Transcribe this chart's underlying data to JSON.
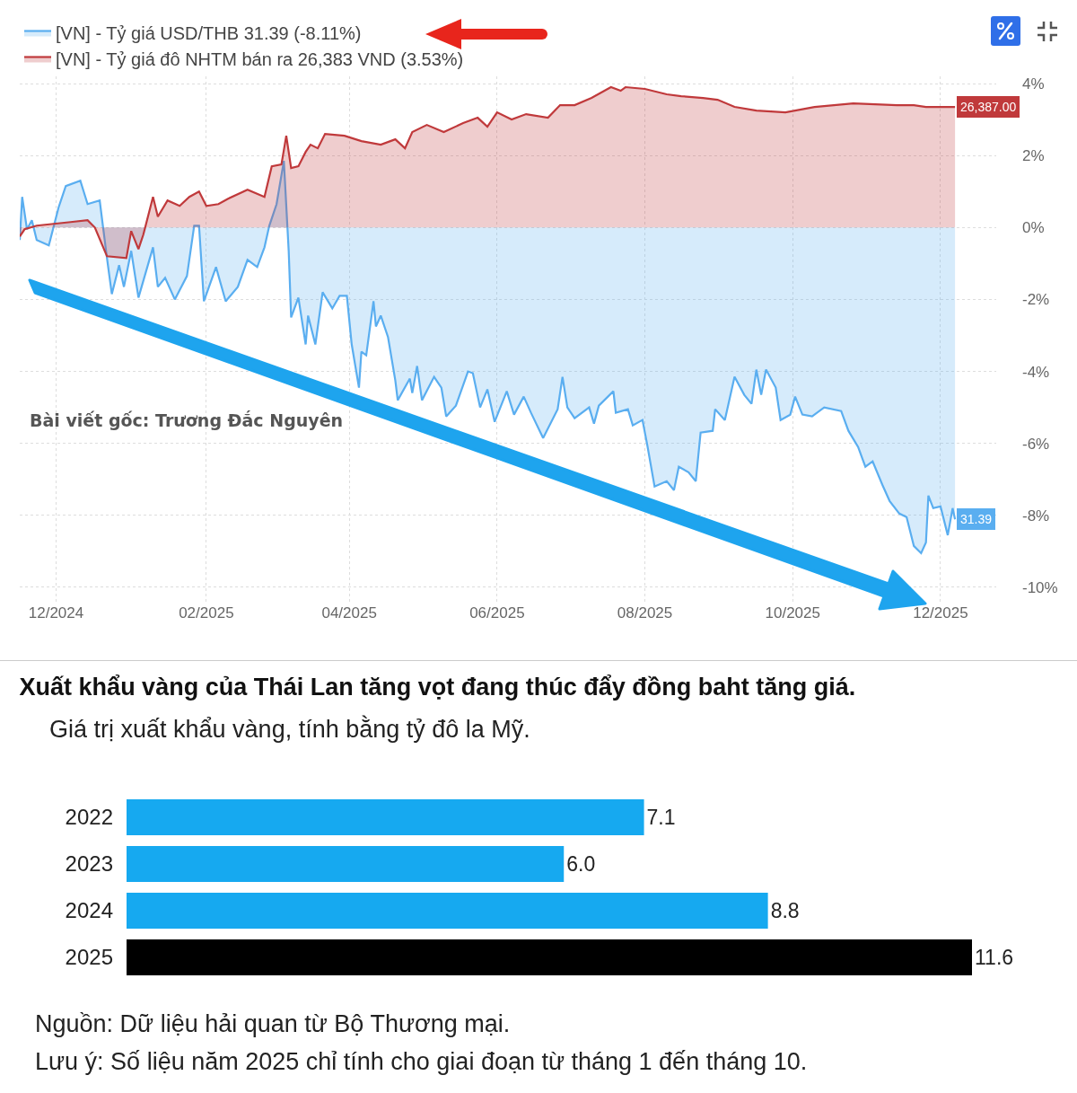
{
  "chart_data": [
    {
      "type": "area",
      "grid": true,
      "legend": "top left",
      "marker": "none",
      "line_style": "solid",
      "xlim": [
        "2024-11-16",
        "2025-12-24"
      ],
      "ylim": [
        -10.4,
        4.2
      ],
      "xticks": [
        {
          "value": "2024-12-01",
          "label": "12/2024"
        },
        {
          "value": "2025-02-01",
          "label": "02/2025"
        },
        {
          "value": "2025-04-01",
          "label": "04/2025"
        },
        {
          "value": "2025-06-01",
          "label": "06/2025"
        },
        {
          "value": "2025-08-01",
          "label": "08/2025"
        },
        {
          "value": "2025-10-01",
          "label": "10/2025"
        },
        {
          "value": "2025-12-01",
          "label": "12/2025"
        }
      ],
      "yticks": [
        {
          "value": 4,
          "label": "4%"
        },
        {
          "value": 2,
          "label": "2%"
        },
        {
          "value": 0,
          "label": "0%"
        },
        {
          "value": -2,
          "label": "-2%"
        },
        {
          "value": -4,
          "label": "-4%"
        },
        {
          "value": -6,
          "label": "-6%"
        },
        {
          "value": -8,
          "label": "-8%"
        },
        {
          "value": -10,
          "label": "-10%"
        }
      ],
      "series": [
        {
          "name": "[VN] - Tỷ giá USD/THB 31.39 (-8.11%)",
          "color": "#5aaef0",
          "x": [
            "2024-11-16",
            "2024-11-17",
            "2024-11-19",
            "2024-11-21",
            "2024-11-23",
            "2024-11-28",
            "2024-12-02",
            "2024-12-05",
            "2024-12-11",
            "2024-12-14",
            "2024-12-19",
            "2024-12-22",
            "2024-12-24",
            "2024-12-27",
            "2024-12-29",
            "2025-01-01",
            "2025-01-04",
            "2025-01-10",
            "2025-01-12",
            "2025-01-15",
            "2025-01-19",
            "2025-01-24",
            "2025-01-27",
            "2025-01-29",
            "2025-01-31",
            "2025-02-05",
            "2025-02-09",
            "2025-02-14",
            "2025-02-18",
            "2025-02-22",
            "2025-02-25",
            "2025-02-27",
            "2025-03-02",
            "2025-03-05",
            "2025-03-07",
            "2025-03-08",
            "2025-03-11",
            "2025-03-14",
            "2025-03-15",
            "2025-03-18",
            "2025-03-21",
            "2025-03-25",
            "2025-03-28",
            "2025-03-31",
            "2025-04-02",
            "2025-04-05",
            "2025-04-06",
            "2025-04-08",
            "2025-04-11",
            "2025-04-12",
            "2025-04-14",
            "2025-04-17",
            "2025-04-20",
            "2025-04-21",
            "2025-04-26",
            "2025-04-27",
            "2025-04-29",
            "2025-05-01",
            "2025-05-06",
            "2025-05-09",
            "2025-05-11",
            "2025-05-15",
            "2025-05-20",
            "2025-05-22",
            "2025-05-25",
            "2025-05-28",
            "2025-05-31",
            "2025-06-05",
            "2025-06-08",
            "2025-06-12",
            "2025-06-15",
            "2025-06-20",
            "2025-06-26",
            "2025-06-28",
            "2025-06-30",
            "2025-07-03",
            "2025-07-09",
            "2025-07-11",
            "2025-07-13",
            "2025-07-19",
            "2025-07-20",
            "2025-07-25",
            "2025-07-27",
            "2025-07-31",
            "2025-08-02",
            "2025-08-05",
            "2025-08-10",
            "2025-08-13",
            "2025-08-15",
            "2025-08-19",
            "2025-08-22",
            "2025-08-24",
            "2025-08-29",
            "2025-08-30",
            "2025-09-03",
            "2025-09-07",
            "2025-09-11",
            "2025-09-14",
            "2025-09-16",
            "2025-09-18",
            "2025-09-20",
            "2025-09-24",
            "2025-09-26",
            "2025-09-30",
            "2025-10-02",
            "2025-10-05",
            "2025-10-09",
            "2025-10-14",
            "2025-10-21",
            "2025-10-24",
            "2025-10-28",
            "2025-10-31",
            "2025-11-03",
            "2025-11-07",
            "2025-11-10",
            "2025-11-14",
            "2025-11-17",
            "2025-11-20",
            "2025-11-23",
            "2025-11-25",
            "2025-11-26",
            "2025-11-28",
            "2025-12-01",
            "2025-12-04",
            "2025-12-06",
            "2025-12-07"
          ],
          "values": [
            -0.35,
            0.85,
            -0.05,
            0.2,
            -0.35,
            -0.5,
            0.55,
            1.15,
            1.3,
            0.65,
            0.75,
            -0.85,
            -1.85,
            -1.05,
            -1.65,
            -0.65,
            -1.95,
            -0.55,
            -1.65,
            -1.4,
            -2.0,
            -1.35,
            0.05,
            0.05,
            -2.05,
            -1.1,
            -2.05,
            -1.65,
            -0.9,
            -1.1,
            -0.55,
            0.05,
            0.65,
            1.85,
            -0.65,
            -2.5,
            -1.95,
            -3.25,
            -2.45,
            -3.25,
            -1.8,
            -2.25,
            -1.9,
            -1.9,
            -3.25,
            -4.45,
            -3.45,
            -3.55,
            -2.05,
            -2.75,
            -2.45,
            -3.05,
            -4.25,
            -4.8,
            -4.2,
            -4.6,
            -3.85,
            -4.8,
            -4.15,
            -4.45,
            -5.25,
            -4.95,
            -4.0,
            -4.05,
            -5.0,
            -4.5,
            -5.4,
            -4.55,
            -5.2,
            -4.7,
            -5.15,
            -5.85,
            -5.05,
            -4.15,
            -5.0,
            -5.3,
            -5.0,
            -5.45,
            -4.95,
            -4.55,
            -5.15,
            -5.05,
            -5.5,
            -5.35,
            -6.05,
            -7.2,
            -7.05,
            -7.3,
            -6.65,
            -6.8,
            -7.05,
            -5.7,
            -5.65,
            -5.05,
            -5.35,
            -4.15,
            -4.65,
            -4.9,
            -3.95,
            -4.65,
            -3.95,
            -4.45,
            -5.35,
            -5.2,
            -4.7,
            -5.2,
            -5.25,
            -5.0,
            -5.1,
            -5.65,
            -6.1,
            -6.65,
            -6.5,
            -7.15,
            -7.6,
            -7.95,
            -8.05,
            -8.85,
            -9.05,
            -8.75,
            -7.45,
            -7.8,
            -7.75,
            -8.55,
            -7.8,
            -8.11
          ]
        },
        {
          "name": "[VN] - Tỷ giá đô NHTM bán ra 26,383 VND (3.53%)",
          "color": "#c0393b",
          "x": [
            "2024-11-16",
            "2024-11-18",
            "2024-11-23",
            "2024-12-07",
            "2024-12-14",
            "2024-12-17",
            "2024-12-22",
            "2024-12-30",
            "2025-01-01",
            "2025-01-04",
            "2025-01-06",
            "2025-01-10",
            "2025-01-12",
            "2025-01-16",
            "2025-01-21",
            "2025-01-25",
            "2025-01-29",
            "2025-02-01",
            "2025-02-06",
            "2025-02-10",
            "2025-02-18",
            "2025-02-25",
            "2025-02-28",
            "2025-03-04",
            "2025-03-06",
            "2025-03-08",
            "2025-03-11",
            "2025-03-14",
            "2025-03-16",
            "2025-03-19",
            "2025-03-22",
            "2025-03-30",
            "2025-04-06",
            "2025-04-14",
            "2025-04-20",
            "2025-04-24",
            "2025-04-27",
            "2025-05-03",
            "2025-05-10",
            "2025-05-18",
            "2025-05-24",
            "2025-05-28",
            "2025-06-01",
            "2025-06-07",
            "2025-06-13",
            "2025-06-22",
            "2025-06-27",
            "2025-07-03",
            "2025-07-10",
            "2025-07-18",
            "2025-07-22",
            "2025-07-24",
            "2025-08-01",
            "2025-08-10",
            "2025-08-16",
            "2025-08-25",
            "2025-08-31",
            "2025-09-07",
            "2025-09-16",
            "2025-09-28",
            "2025-10-10",
            "2025-10-26",
            "2025-11-13",
            "2025-11-20",
            "2025-11-25",
            "2025-12-07"
          ],
          "values": [
            -0.25,
            -0.05,
            0.05,
            0.15,
            0.2,
            0.0,
            -0.8,
            -0.85,
            -0.1,
            -0.6,
            -0.2,
            0.85,
            0.3,
            0.75,
            0.6,
            0.85,
            1.0,
            0.6,
            0.65,
            0.8,
            1.05,
            0.85,
            1.7,
            1.75,
            2.55,
            1.65,
            1.7,
            2.1,
            2.3,
            2.2,
            2.6,
            2.55,
            2.4,
            2.3,
            2.45,
            2.2,
            2.65,
            2.85,
            2.65,
            2.9,
            3.05,
            2.8,
            3.2,
            3.0,
            3.15,
            3.05,
            3.4,
            3.4,
            3.6,
            3.9,
            3.8,
            3.9,
            3.85,
            3.7,
            3.65,
            3.6,
            3.55,
            3.35,
            3.25,
            3.2,
            3.35,
            3.45,
            3.4,
            3.4,
            3.35,
            3.35
          ]
        }
      ],
      "annotations": [
        "Bài viết gốc: Trương Đắc Nguyên",
        {
          "text": "26,387.00",
          "x": "2025-12-07",
          "y": 3.35
        },
        {
          "text": "31.39",
          "x": "2025-12-07",
          "y": -8.11
        }
      ]
    },
    {
      "type": "bar",
      "orientation": "horizontal",
      "title": "Xuất khẩu vàng của Thái Lan tăng vọt đang thúc đẩy đồng baht tăng giá.",
      "subtitle": "Giá trị xuất khẩu vàng, tính bằng tỷ đô la Mỹ.",
      "categories": [
        "2022",
        "2023",
        "2024",
        "2025"
      ],
      "values": [
        7.1,
        6.0,
        8.8,
        11.6
      ],
      "value_labels": [
        "7.1",
        "6.0",
        "8.8",
        "11.6"
      ],
      "colors": [
        "#16a9f0",
        "#16a9f0",
        "#16a9f0",
        "#000000"
      ],
      "tick_labels": "y",
      "grid": false,
      "legend": false,
      "annotations": [
        "Nguồn: Dữ liệu hải quan từ Bộ Thương mại.",
        "Lưu ý: Số liệu năm 2025 chỉ tính cho giai đoạn từ tháng 1 đến tháng 10."
      ]
    }
  ]
}
